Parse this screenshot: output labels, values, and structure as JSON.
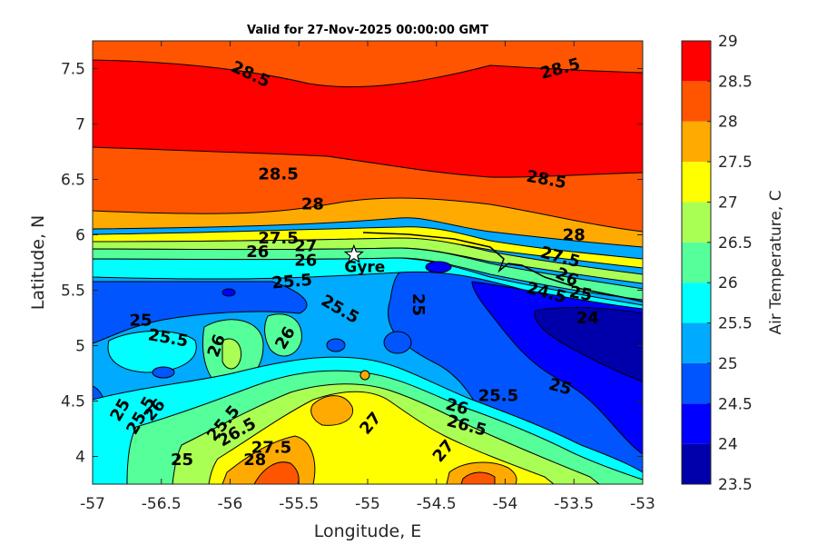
{
  "chart_data": {
    "type": "contourf",
    "title": "Valid for 27-Nov-2025 00:00:00 GMT",
    "xlabel": "Longitude, E",
    "ylabel": "Latitude, N",
    "xlim": [
      -57,
      -53
    ],
    "ylim": [
      3.75,
      7.75
    ],
    "xticks": [
      "-57",
      "-56.5",
      "-56",
      "-55.5",
      "-55",
      "-54.5",
      "-54",
      "-53.5",
      "-53"
    ],
    "yticks": [
      "4",
      "4.5",
      "5",
      "5.5",
      "6",
      "6.5",
      "7",
      "7.5"
    ],
    "colorbar": {
      "label": "Air Temperature, C",
      "levels": [
        23.5,
        24,
        24.5,
        25,
        25.5,
        26,
        26.5,
        27,
        27.5,
        28,
        28.5,
        29
      ],
      "ticks": [
        "23.5",
        "24",
        "24.5",
        "25",
        "25.5",
        "26",
        "26.5",
        "27",
        "27.5",
        "28",
        "28.5",
        "29"
      ],
      "colors": [
        "#0000aa",
        "#0000ff",
        "#0055ff",
        "#00aaff",
        "#00ffff",
        "#55ff99",
        "#aaff55",
        "#ffff00",
        "#ffaa00",
        "#ff5500",
        "#ff0000"
      ]
    },
    "contour_labels": [
      {
        "text": "28.5",
        "x": -55.85,
        "y": 7.45,
        "angle": 25
      },
      {
        "text": "28.5",
        "x": -53.6,
        "y": 7.5,
        "angle": -15
      },
      {
        "text": "28.5",
        "x": -55.65,
        "y": 6.55,
        "angle": 0
      },
      {
        "text": "28.5",
        "x": -53.7,
        "y": 6.5,
        "angle": 10
      },
      {
        "text": "28",
        "x": -55.4,
        "y": 6.28,
        "angle": 0
      },
      {
        "text": "28",
        "x": -53.5,
        "y": 6.0,
        "angle": 0
      },
      {
        "text": "27.5",
        "x": -55.65,
        "y": 5.97,
        "angle": 0
      },
      {
        "text": "27.5",
        "x": -53.6,
        "y": 5.8,
        "angle": 15
      },
      {
        "text": "26",
        "x": -55.8,
        "y": 5.85,
        "angle": 0
      },
      {
        "text": "27",
        "x": -55.45,
        "y": 5.9,
        "angle": 0
      },
      {
        "text": "26",
        "x": -55.45,
        "y": 5.77,
        "angle": 0
      },
      {
        "text": "25.5",
        "x": -55.55,
        "y": 5.58,
        "angle": -5
      },
      {
        "text": "25.5",
        "x": -55.2,
        "y": 5.33,
        "angle": 30
      },
      {
        "text": "25",
        "x": -54.63,
        "y": 5.37,
        "angle": 90
      },
      {
        "text": "26",
        "x": -53.55,
        "y": 5.62,
        "angle": 25
      },
      {
        "text": "25",
        "x": -53.45,
        "y": 5.47,
        "angle": 10
      },
      {
        "text": "24.5",
        "x": -53.7,
        "y": 5.48,
        "angle": 15
      },
      {
        "text": "24",
        "x": -53.4,
        "y": 5.25,
        "angle": 0
      },
      {
        "text": "25",
        "x": -56.65,
        "y": 5.23,
        "angle": 0
      },
      {
        "text": "25.5",
        "x": -56.45,
        "y": 5.07,
        "angle": 10
      },
      {
        "text": "26",
        "x": -56.1,
        "y": 5.0,
        "angle": -70
      },
      {
        "text": "26",
        "x": -55.6,
        "y": 5.07,
        "angle": -60
      },
      {
        "text": "26",
        "x": -54.35,
        "y": 4.45,
        "angle": 15
      },
      {
        "text": "25.5",
        "x": -54.05,
        "y": 4.55,
        "angle": 0
      },
      {
        "text": "25",
        "x": -53.6,
        "y": 4.63,
        "angle": 15
      },
      {
        "text": "26.5",
        "x": -54.28,
        "y": 4.28,
        "angle": 15
      },
      {
        "text": "27",
        "x": -54.98,
        "y": 4.3,
        "angle": -50
      },
      {
        "text": "27",
        "x": -54.45,
        "y": 4.05,
        "angle": -50
      },
      {
        "text": "25",
        "x": -56.8,
        "y": 4.42,
        "angle": -60
      },
      {
        "text": "25.5",
        "x": -56.65,
        "y": 4.37,
        "angle": -60
      },
      {
        "text": "26",
        "x": -56.55,
        "y": 4.42,
        "angle": -50
      },
      {
        "text": "25",
        "x": -56.35,
        "y": 3.97,
        "angle": 0
      },
      {
        "text": "25.5",
        "x": -56.05,
        "y": 4.3,
        "angle": -50
      },
      {
        "text": "26.5",
        "x": -55.95,
        "y": 4.22,
        "angle": -30
      },
      {
        "text": "27.5",
        "x": -55.7,
        "y": 4.08,
        "angle": 0
      },
      {
        "text": "28",
        "x": -55.82,
        "y": 3.97,
        "angle": 0
      }
    ],
    "marker": {
      "label": "Gyre",
      "x": -55.1,
      "y": 5.82,
      "symbol": "star"
    }
  }
}
